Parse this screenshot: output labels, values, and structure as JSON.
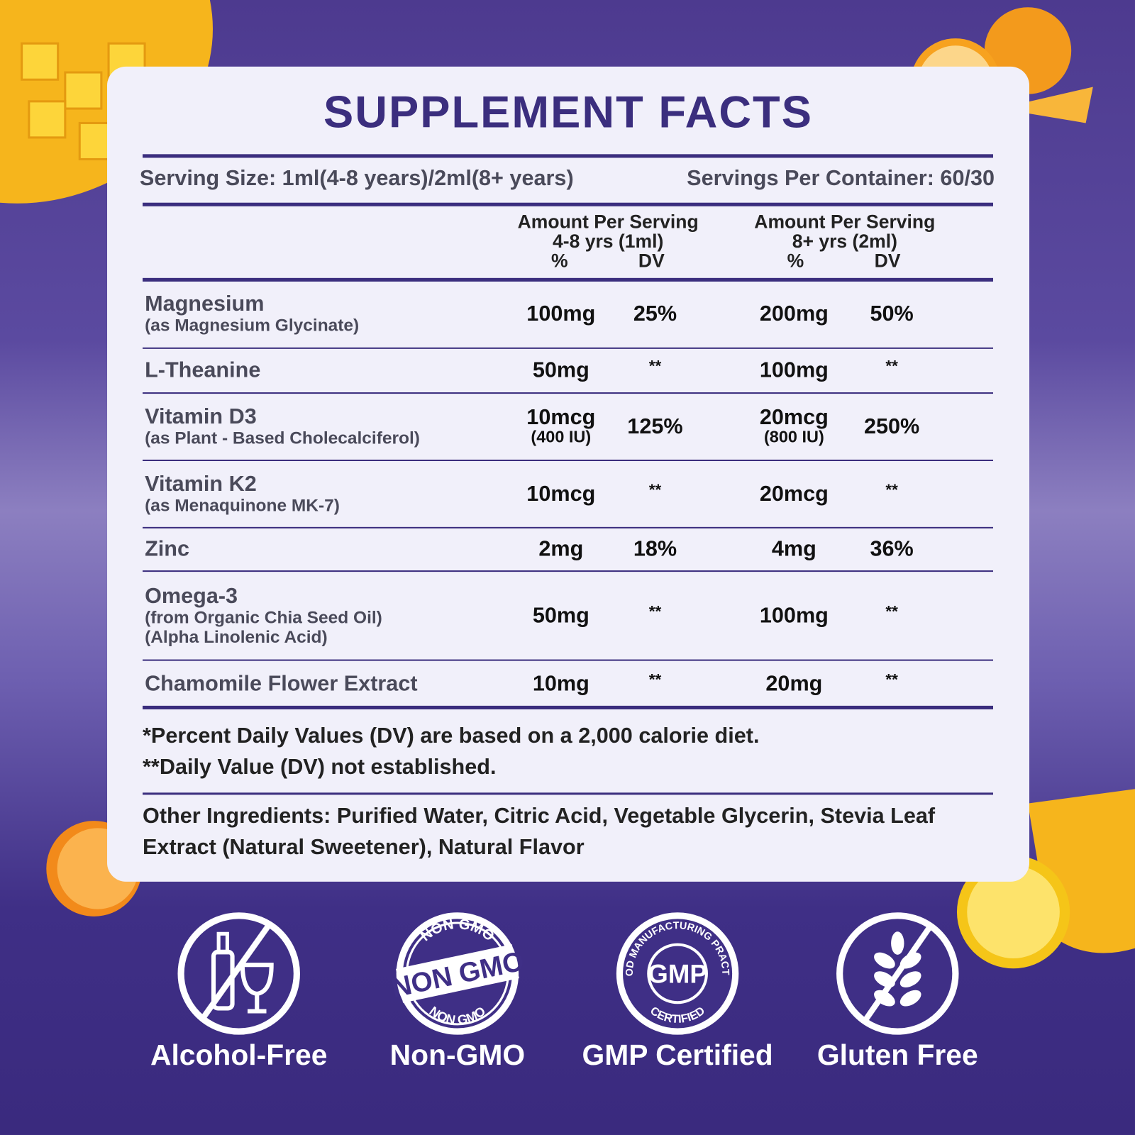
{
  "title": "SUPPLEMENT FACTS",
  "serving_size": "Serving Size: 1ml(4-8 years)/2ml(8+ years)",
  "servings_per_container": "Servings Per Container: 60/30",
  "columns": [
    {
      "lines": [
        "Amount Per Serving",
        "4-8 yrs (1ml)"
      ],
      "pct": "%",
      "dv": "DV"
    },
    {
      "lines": [
        "Amount Per Serving",
        "8+ yrs (2ml)"
      ],
      "pct": "%",
      "dv": "DV"
    }
  ],
  "rows": [
    {
      "name": "Magnesium",
      "sub": [
        "(as Magnesium Glycinate)"
      ],
      "amounts": [
        {
          "lines": [
            "100mg"
          ],
          "dv": "25%"
        },
        {
          "lines": [
            "200mg"
          ],
          "dv": "50%"
        }
      ]
    },
    {
      "name": "L-Theanine",
      "sub": [],
      "amounts": [
        {
          "lines": [
            "50mg"
          ],
          "dv": "**"
        },
        {
          "lines": [
            "100mg"
          ],
          "dv": "**"
        }
      ]
    },
    {
      "name": "Vitamin D3",
      "sub": [
        "(as Plant - Based Cholecalciferol)"
      ],
      "amounts": [
        {
          "lines": [
            "10mcg",
            "(400 IU)"
          ],
          "dv": "125%"
        },
        {
          "lines": [
            "20mcg",
            "(800 IU)"
          ],
          "dv": "250%"
        }
      ]
    },
    {
      "name": "Vitamin K2",
      "sub": [
        "(as Menaquinone MK-7)"
      ],
      "amounts": [
        {
          "lines": [
            "10mcg"
          ],
          "dv": "**"
        },
        {
          "lines": [
            "20mcg"
          ],
          "dv": "**"
        }
      ]
    },
    {
      "name": "Zinc",
      "sub": [],
      "amounts": [
        {
          "lines": [
            "2mg"
          ],
          "dv": "18%"
        },
        {
          "lines": [
            "4mg"
          ],
          "dv": "36%"
        }
      ]
    },
    {
      "name": "Omega-3",
      "sub": [
        "(from Organic Chia Seed Oil)",
        "(Alpha Linolenic Acid)"
      ],
      "amounts": [
        {
          "lines": [
            "50mg"
          ],
          "dv": "**"
        },
        {
          "lines": [
            "100mg"
          ],
          "dv": "**"
        }
      ]
    },
    {
      "name": "Chamomile Flower Extract",
      "sub": [],
      "amounts": [
        {
          "lines": [
            "10mg"
          ],
          "dv": "**"
        },
        {
          "lines": [
            "20mg"
          ],
          "dv": "**"
        }
      ]
    }
  ],
  "footnotes": [
    "*Percent Daily Values (DV) are based on a 2,000 calorie diet.",
    "**Daily Value (DV) not established."
  ],
  "other_ingredients": "Other Ingredients: Purified Water, Citric Acid, Vegetable Glycerin, Stevia Leaf Extract (Natural Sweetener), Natural Flavor",
  "badges": [
    {
      "label": "Alcohol-Free"
    },
    {
      "label": "Non-GMO",
      "icon_text": [
        "NON GMO",
        "NON GMO",
        "NON GMO"
      ]
    },
    {
      "label": "GMP Certified",
      "icon_text": [
        "GOOD MANUFACTURING PRACTICE",
        "GMP",
        "CERTIFIED"
      ]
    },
    {
      "label": "Gluten Free"
    }
  ]
}
